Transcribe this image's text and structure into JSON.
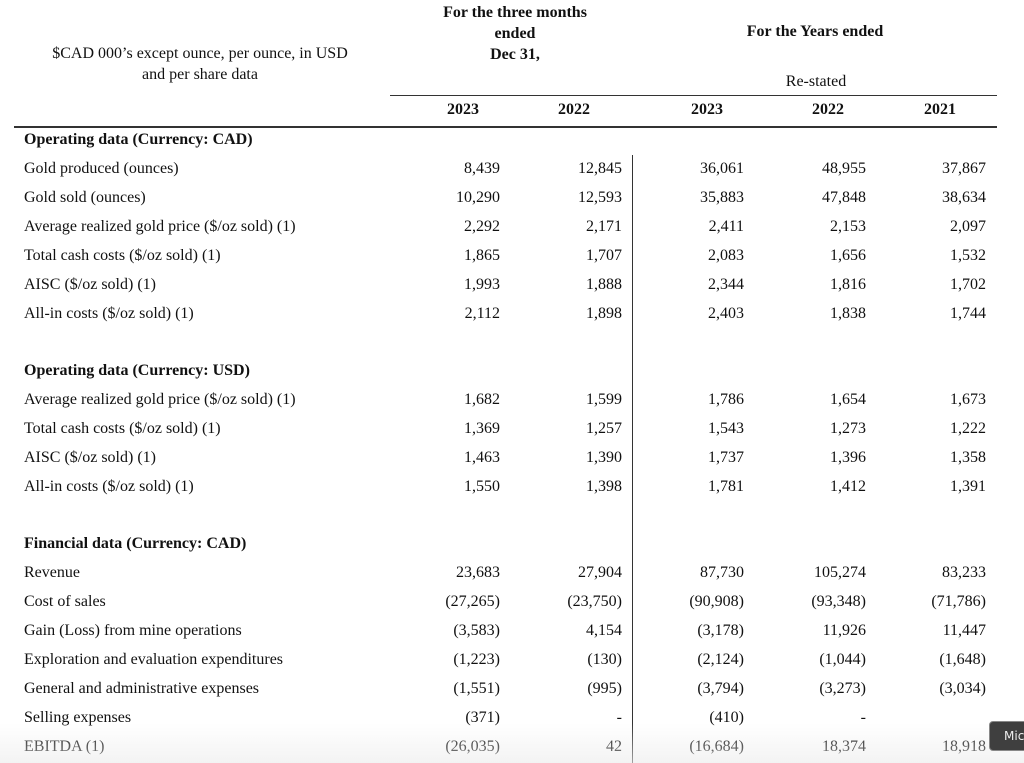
{
  "header": {
    "caption_line1": "$CAD 000’s except ounce, per ounce, in USD",
    "caption_line2": "and per share data",
    "three_months": [
      "For the three months",
      "ended",
      "Dec 31,"
    ],
    "years": "For the Years ended",
    "restated": "Re-stated",
    "columns": [
      "2023",
      "2022",
      "2023",
      "2022",
      "2021"
    ]
  },
  "sections": [
    {
      "title": "Operating data (Currency: CAD)",
      "rows": [
        {
          "label": "Gold produced (ounces)",
          "values": [
            "8,439",
            "12,845",
            "36,061",
            "48,955",
            "37,867"
          ]
        },
        {
          "label": "Gold sold (ounces)",
          "values": [
            "10,290",
            "12,593",
            "35,883",
            "47,848",
            "38,634"
          ]
        },
        {
          "label": "Average realized gold price ($/oz sold) (1)",
          "values": [
            "2,292",
            "2,171",
            "2,411",
            "2,153",
            "2,097"
          ]
        },
        {
          "label": "Total cash costs ($/oz sold) (1)",
          "values": [
            "1,865",
            "1,707",
            "2,083",
            "1,656",
            "1,532"
          ]
        },
        {
          "label": "AISC ($/oz sold) (1)",
          "values": [
            "1,993",
            "1,888",
            "2,344",
            "1,816",
            "1,702"
          ]
        },
        {
          "label": "All-in costs ($/oz sold) (1)",
          "values": [
            "2,112",
            "1,898",
            "2,403",
            "1,838",
            "1,744"
          ]
        }
      ]
    },
    {
      "title": "Operating data (Currency: USD)",
      "rows": [
        {
          "label": "Average realized gold price ($/oz sold) (1)",
          "values": [
            "1,682",
            "1,599",
            "1,786",
            "1,654",
            "1,673"
          ]
        },
        {
          "label": "Total cash costs ($/oz sold) (1)",
          "values": [
            "1,369",
            "1,257",
            "1,543",
            "1,273",
            "1,222"
          ]
        },
        {
          "label": "AISC ($/oz sold) (1)",
          "values": [
            "1,463",
            "1,390",
            "1,737",
            "1,396",
            "1,358"
          ]
        },
        {
          "label": "All-in costs ($/oz sold) (1)",
          "values": [
            "1,550",
            "1,398",
            "1,781",
            "1,412",
            "1,391"
          ]
        }
      ]
    },
    {
      "title": "Financial data (Currency: CAD)",
      "rows": [
        {
          "label": "Revenue",
          "values": [
            "23,683",
            "27,904",
            "87,730",
            "105,274",
            "83,233"
          ]
        },
        {
          "label": "Cost of sales",
          "values": [
            "(27,265)",
            "(23,750)",
            "(90,908)",
            "(93,348)",
            "(71,786)"
          ]
        },
        {
          "label": "Gain (Loss) from mine operations",
          "values": [
            "(3,583)",
            "4,154",
            "(3,178)",
            "11,926",
            "11,447"
          ]
        },
        {
          "label": "Exploration and evaluation expenditures",
          "values": [
            "(1,223)",
            "(130)",
            "(2,124)",
            "(1,044)",
            "(1,648)"
          ]
        },
        {
          "label": "General and administrative expenses",
          "values": [
            "(1,551)",
            "(995)",
            "(3,794)",
            "(3,273)",
            "(3,034)"
          ]
        },
        {
          "label": "Selling expenses",
          "values": [
            "(371)",
            "-",
            "(410)",
            "-",
            ""
          ]
        },
        {
          "label": "EBITDA (1)",
          "values": [
            "(26,035)",
            "42",
            "(16,684)",
            "18,374",
            "18,918"
          ]
        }
      ]
    }
  ],
  "tooltip": "Mic"
}
